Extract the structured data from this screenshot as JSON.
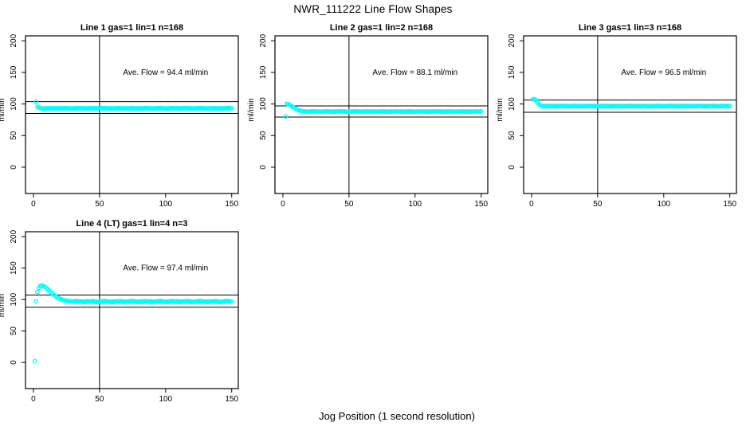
{
  "figure": {
    "title": "NWR_111222  Line Flow Shapes",
    "x_axis_title": "Jog Position (1 second resolution)",
    "y_axis_title": "ml/min",
    "background_color": "#FFFFFF",
    "point_color": "#00FFFF",
    "line_color": "#000000"
  },
  "chart_data": {
    "type": "scatter",
    "layout": "2x3 grid, 4 panels used (top row of 3, bottom-left)",
    "marker": {
      "shape": "open-circle",
      "color": "#00FFFF"
    },
    "x_ticks": [
      0,
      50,
      100,
      150
    ],
    "y_ticks": [
      0,
      50,
      100,
      150,
      200
    ],
    "xlim": [
      0,
      150
    ],
    "ylim": [
      0,
      200
    ],
    "grid": false,
    "ylabel": "ml/min",
    "xlabel": "Jog Position (1 second resolution)",
    "panels": [
      {
        "title": "Line 1 gas=1 lin=1 n=168",
        "ave_flow": 94.4,
        "annotation": "Ave. Flow =  94.4  ml/min",
        "annotation_pos": {
          "x": 100,
          "y": 150
        },
        "ref_lines": {
          "v_line_x": 50,
          "h_upper": 103.8,
          "h_lower": 85.0
        },
        "transient_points": [
          [
            2,
            103.5
          ],
          [
            3,
            95.8
          ],
          [
            4,
            94.5
          ],
          [
            5,
            93.8
          ]
        ],
        "steady_segment": {
          "x_from": 6,
          "x_to": 150,
          "y": 93.2,
          "jitter": 0.35
        }
      },
      {
        "title": "Line 2 gas=1 lin=2 n=168",
        "ave_flow": 88.1,
        "annotation": "Ave. Flow =  88.1  ml/min",
        "annotation_pos": {
          "x": 100,
          "y": 150
        },
        "ref_lines": {
          "v_line_x": 50,
          "h_upper": 96.9,
          "h_lower": 79.3
        },
        "transient_points": [
          [
            2,
            80.2
          ],
          [
            3,
            100.4
          ],
          [
            4,
            99.9
          ],
          [
            5,
            99.0
          ],
          [
            6,
            97.6
          ],
          [
            7,
            96.1
          ],
          [
            8,
            94.6
          ],
          [
            9,
            93.2
          ],
          [
            10,
            92.0
          ],
          [
            11,
            91.0
          ],
          [
            12,
            90.2
          ],
          [
            13,
            89.5
          ],
          [
            14,
            89.0
          ],
          [
            15,
            88.6
          ],
          [
            16,
            88.4
          ]
        ],
        "steady_segment": {
          "x_from": 17,
          "x_to": 150,
          "y": 88.1,
          "jitter": 0.3
        }
      },
      {
        "title": "Line 3 gas=1 lin=3 n=168",
        "ave_flow": 96.5,
        "annotation": "Ave. Flow =  96.5  ml/min",
        "annotation_pos": {
          "x": 100,
          "y": 150
        },
        "ref_lines": {
          "v_line_x": 50,
          "h_upper": 106.2,
          "h_lower": 86.9
        },
        "transient_points": [
          [
            1,
            107.3
          ],
          [
            2,
            107.9
          ],
          [
            3,
            106.8
          ],
          [
            4,
            103.2
          ],
          [
            5,
            100.6
          ],
          [
            6,
            98.9
          ],
          [
            7,
            97.8
          ],
          [
            8,
            97.2
          ]
        ],
        "steady_segment": {
          "x_from": 9,
          "x_to": 150,
          "y": 96.7,
          "jitter": 0.35
        }
      },
      {
        "title": "Line 4 (LT) gas=1 lin=4 n=3",
        "ave_flow": 97.4,
        "annotation": "Ave. Flow =  97.4  ml/min",
        "annotation_pos": {
          "x": 100,
          "y": 150
        },
        "ref_lines": {
          "v_line_x": 50,
          "h_upper": 107.1,
          "h_lower": 87.7
        },
        "transient_points": [
          [
            1,
            2.0
          ],
          [
            2,
            97.0
          ],
          [
            3,
            112.0
          ],
          [
            4,
            118.5
          ],
          [
            5,
            121.2
          ],
          [
            6,
            122.1
          ],
          [
            7,
            121.9
          ],
          [
            8,
            121.0
          ],
          [
            9,
            119.6
          ],
          [
            10,
            117.9
          ],
          [
            11,
            116.0
          ],
          [
            12,
            114.0
          ],
          [
            13,
            112.0
          ],
          [
            14,
            110.1
          ],
          [
            15,
            108.2
          ],
          [
            16,
            106.5
          ],
          [
            17,
            105.0
          ],
          [
            18,
            103.6
          ],
          [
            19,
            102.4
          ],
          [
            20,
            101.3
          ],
          [
            21,
            100.4
          ],
          [
            22,
            99.6
          ],
          [
            23,
            99.0
          ],
          [
            24,
            98.4
          ],
          [
            25,
            98.0
          ],
          [
            26,
            97.6
          ],
          [
            27,
            97.3
          ],
          [
            28,
            97.1
          ],
          [
            29,
            96.9
          ],
          [
            30,
            96.8
          ]
        ],
        "steady_segment": {
          "x_from": 31,
          "x_to": 150,
          "y": 96.8,
          "jitter": 0.8
        }
      }
    ]
  }
}
